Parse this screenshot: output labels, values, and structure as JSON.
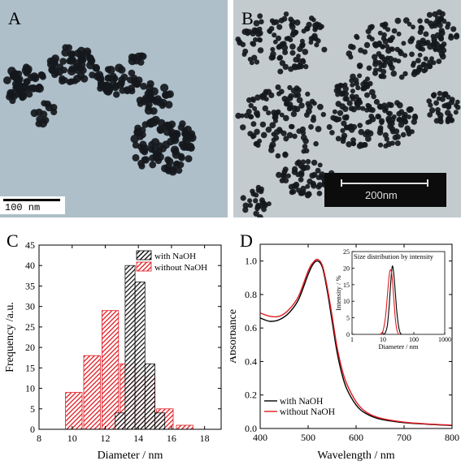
{
  "panels": {
    "A": {
      "letter": "A",
      "scalebar_label": "100 nm"
    },
    "B": {
      "letter": "B",
      "scalebar_label": "200nm"
    },
    "C": {
      "letter": "C"
    },
    "D": {
      "letter": "D"
    }
  },
  "colors": {
    "black_series": "#000000",
    "red_series": "#e0191f",
    "tem_bg_A": "#aebfca",
    "tem_bg_B": "#c4cbcf"
  },
  "chart_data": [
    {
      "panel": "C",
      "type": "bar",
      "xlabel": "Diameter / nm",
      "ylabel": "Frequency /a.u.",
      "xlim": [
        8,
        19
      ],
      "ylim": [
        0,
        45
      ],
      "xticks": [
        8,
        10,
        12,
        14,
        16,
        18
      ],
      "yticks": [
        0,
        5,
        10,
        15,
        20,
        25,
        30,
        35,
        40,
        45
      ],
      "legend_position": "top-right",
      "series": [
        {
          "name": "with NaOH",
          "color": "#000000",
          "hatch": "diagonal",
          "bins": [
            {
              "x": 12.9,
              "width": 0.6,
              "value": 4
            },
            {
              "x": 13.5,
              "width": 0.6,
              "value": 40
            },
            {
              "x": 14.1,
              "width": 0.6,
              "value": 36
            },
            {
              "x": 14.7,
              "width": 0.6,
              "value": 16
            },
            {
              "x": 15.3,
              "width": 0.6,
              "value": 4
            }
          ]
        },
        {
          "name": "without NaOH",
          "color": "#e0191f",
          "hatch": "diagonal",
          "bins": [
            {
              "x": 10.1,
              "width": 1.0,
              "value": 9
            },
            {
              "x": 11.2,
              "width": 1.0,
              "value": 18
            },
            {
              "x": 12.3,
              "width": 1.0,
              "value": 29
            },
            {
              "x": 13.4,
              "width": 1.0,
              "value": 16
            },
            {
              "x": 14.5,
              "width": 1.0,
              "value": 13
            },
            {
              "x": 15.6,
              "width": 1.0,
              "value": 5
            },
            {
              "x": 16.8,
              "width": 1.0,
              "value": 1
            }
          ]
        }
      ]
    },
    {
      "panel": "D",
      "type": "line",
      "xlabel": "Wavelength / nm",
      "ylabel": "Absorbance",
      "xlim": [
        400,
        800
      ],
      "ylim": [
        0,
        1.1
      ],
      "xticks": [
        400,
        500,
        600,
        700,
        800
      ],
      "yticks": [
        0.0,
        0.2,
        0.4,
        0.6,
        0.8,
        1.0
      ],
      "ytick_labels": [
        "0.0",
        "0.2",
        "0.4",
        "0.6",
        "0.8",
        "1.0"
      ],
      "legend_position": "bottom-left",
      "series": [
        {
          "name": "with NaOH",
          "color": "#000000",
          "x": [
            400,
            420,
            440,
            460,
            480,
            500,
            510,
            520,
            530,
            540,
            550,
            560,
            570,
            580,
            600,
            620,
            650,
            700,
            750,
            800
          ],
          "y": [
            0.66,
            0.64,
            0.65,
            0.69,
            0.77,
            0.92,
            0.98,
            1.0,
            0.96,
            0.82,
            0.64,
            0.46,
            0.33,
            0.24,
            0.14,
            0.09,
            0.056,
            0.035,
            0.025,
            0.018
          ]
        },
        {
          "name": "without NaOH",
          "color": "#e0191f",
          "x": [
            400,
            420,
            440,
            460,
            480,
            500,
            510,
            520,
            530,
            540,
            550,
            560,
            570,
            580,
            600,
            620,
            650,
            700,
            750,
            800
          ],
          "y": [
            0.69,
            0.67,
            0.67,
            0.71,
            0.79,
            0.94,
            0.99,
            1.01,
            0.97,
            0.84,
            0.67,
            0.49,
            0.36,
            0.27,
            0.16,
            0.1,
            0.062,
            0.038,
            0.027,
            0.02
          ]
        }
      ],
      "inset": {
        "title": "Size distribution by intensity",
        "type": "line",
        "xlabel": "Diameter / nm",
        "ylabel": "Intensity / %",
        "xscale": "log",
        "xlim": [
          1,
          1000
        ],
        "ylim": [
          0,
          25
        ],
        "xticks": [
          1,
          10,
          100,
          1000
        ],
        "yticks": [
          0,
          5,
          10,
          15,
          20,
          25
        ],
        "series": [
          {
            "name": "with NaOH",
            "color": "#000000",
            "x": [
              10,
              12,
              14,
              16,
              18,
              20,
              22,
              25,
              28,
              32,
              36,
              40
            ],
            "y": [
              0,
              0.5,
              3,
              9,
              16,
              20.5,
              19,
              13,
              7,
              2.5,
              0.5,
              0
            ]
          },
          {
            "name": "without NaOH",
            "color": "#e0191f",
            "x": [
              8,
              10,
              12,
              14,
              16,
              18,
              20,
              22,
              25,
              28,
              32
            ],
            "y": [
              0,
              1,
              5,
              12,
              18,
              19.5,
              17,
              12,
              5,
              1.5,
              0
            ]
          }
        ]
      }
    }
  ]
}
